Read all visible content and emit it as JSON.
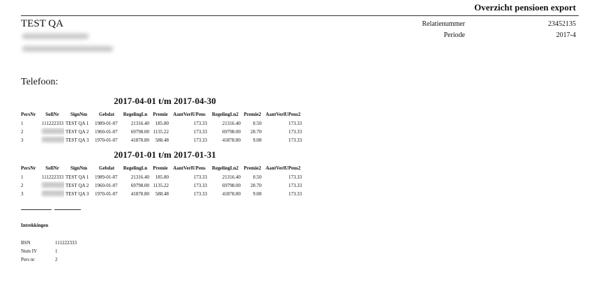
{
  "header": {
    "title": "Overzicht pensioen export"
  },
  "company": {
    "name": "TEST QA",
    "phone_label": "Telefoon:"
  },
  "meta": [
    {
      "label": "Relatienummer",
      "value": "23452135"
    },
    {
      "label": "Periode",
      "value": "2017-4"
    }
  ],
  "tables": [
    {
      "heading": "2017-04-01 t/m 2017-04-30",
      "columns": [
        "PersNr",
        "SofiNr",
        "SignNm",
        "Gebdat",
        "RegelingLn",
        "Premie",
        "AantVerlUPens",
        "RegelingLn2",
        "Premie2",
        "AantVerlUPens2"
      ],
      "rows": [
        [
          "1",
          "111222333",
          "TEST QA 1",
          "1989-01-07",
          "21316.40",
          "185.80",
          "173.33",
          "21316.40",
          "0.50",
          "173.33"
        ],
        [
          "2",
          null,
          "TEST QA 2",
          "1960-01-07",
          "69798.00",
          "1135.22",
          "173.33",
          "69798.00",
          "20.70",
          "173.33"
        ],
        [
          "3",
          null,
          "TEST QA 3",
          "1970-01-07",
          "41878.80",
          "588.48",
          "173.33",
          "41878.80",
          "9.08",
          "173.33"
        ]
      ]
    },
    {
      "heading": "2017-01-01 t/m 2017-01-31",
      "columns": [
        "PersNr",
        "SofiNr",
        "SignNm",
        "Gebdat",
        "RegelingLn",
        "Premie",
        "AantVerlUPens",
        "RegelingLn2",
        "Premie2",
        "AantVerlUPens2"
      ],
      "rows": [
        [
          "1",
          "111222333",
          "TEST QA 1",
          "1989-01-07",
          "21316.40",
          "185.80",
          "173.33",
          "21316.40",
          "0.50",
          "173.33"
        ],
        [
          "2",
          null,
          "TEST QA 2",
          "1960-01-07",
          "69798.00",
          "1135.22",
          "173.33",
          "69798.00",
          "20.70",
          "173.33"
        ],
        [
          "3",
          null,
          "TEST QA 3",
          "1970-01-07",
          "41878.80",
          "588.48",
          "173.33",
          "41878.80",
          "9.08",
          "173.33"
        ]
      ]
    }
  ],
  "withdrawals": {
    "title": "Intrekkingen",
    "items": [
      {
        "label": "BSN",
        "value": "111222333"
      },
      {
        "label": "Num IV",
        "value": "1"
      },
      {
        "label": "Pers nr",
        "value": "2"
      }
    ]
  }
}
